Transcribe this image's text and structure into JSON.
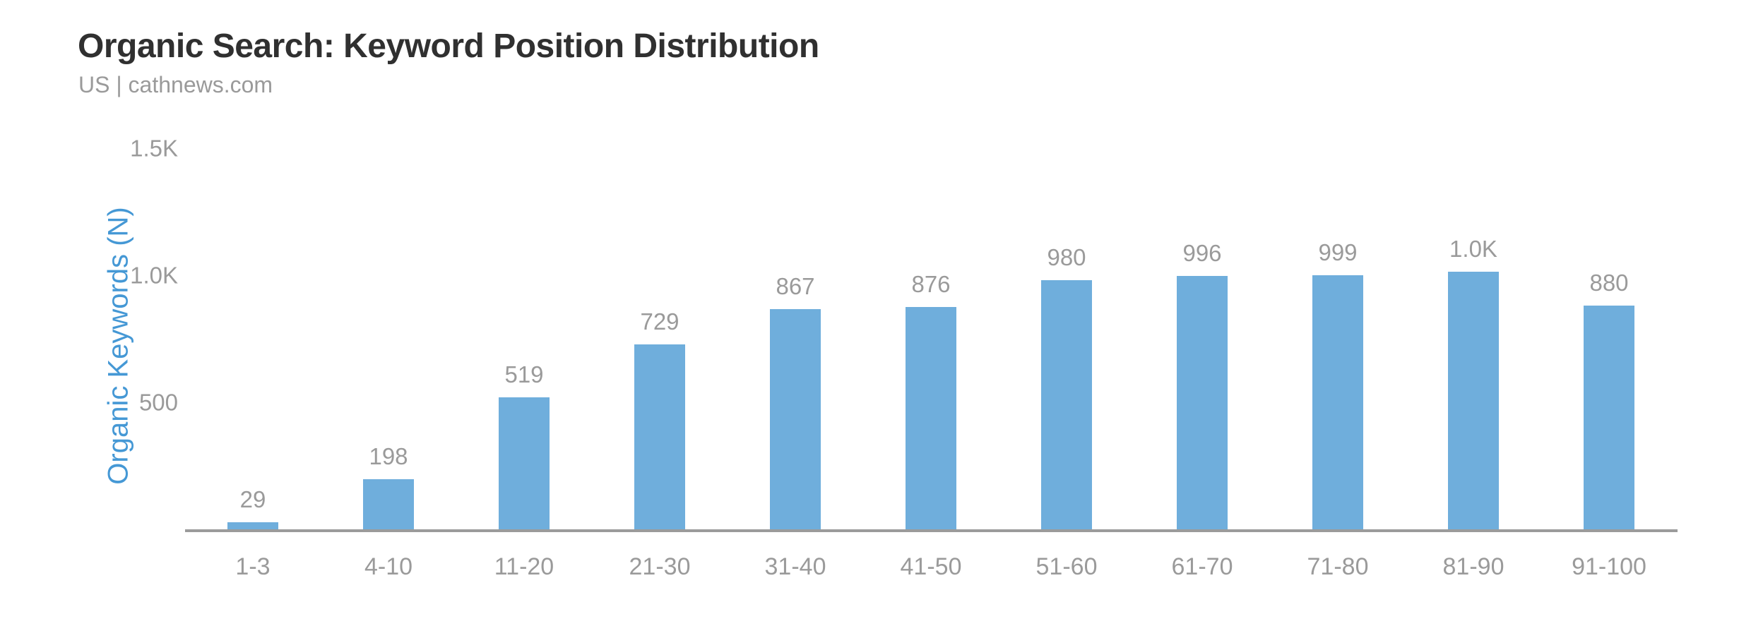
{
  "chart_data": {
    "type": "bar",
    "title": "Organic Search: Keyword Position Distribution",
    "subtitle": "US | cathnews.com",
    "xlabel": "",
    "ylabel": "Organic Keywords (N)",
    "categories": [
      "1-3",
      "4-10",
      "11-20",
      "21-30",
      "31-40",
      "41-50",
      "51-60",
      "61-70",
      "71-80",
      "81-90",
      "91-100"
    ],
    "values": [
      29,
      198,
      519,
      729,
      867,
      876,
      980,
      996,
      999,
      1015,
      880
    ],
    "value_labels": [
      "29",
      "198",
      "519",
      "729",
      "867",
      "876",
      "980",
      "996",
      "999",
      "1.0K",
      "880"
    ],
    "ylim": [
      0,
      1500
    ],
    "yticks": [
      {
        "value": 500,
        "label": "500"
      },
      {
        "value": 1000,
        "label": "1.0K"
      },
      {
        "value": 1500,
        "label": "1.5K"
      }
    ],
    "grid": false,
    "legend": "none",
    "colors": {
      "bar": "#6FAEDC",
      "axis_title": "#4598D5",
      "tick_text": "#9A9A9A",
      "axis_line": "#9B9B9B",
      "title_text": "#303030",
      "subtitle_text": "#9A9A9A"
    }
  }
}
